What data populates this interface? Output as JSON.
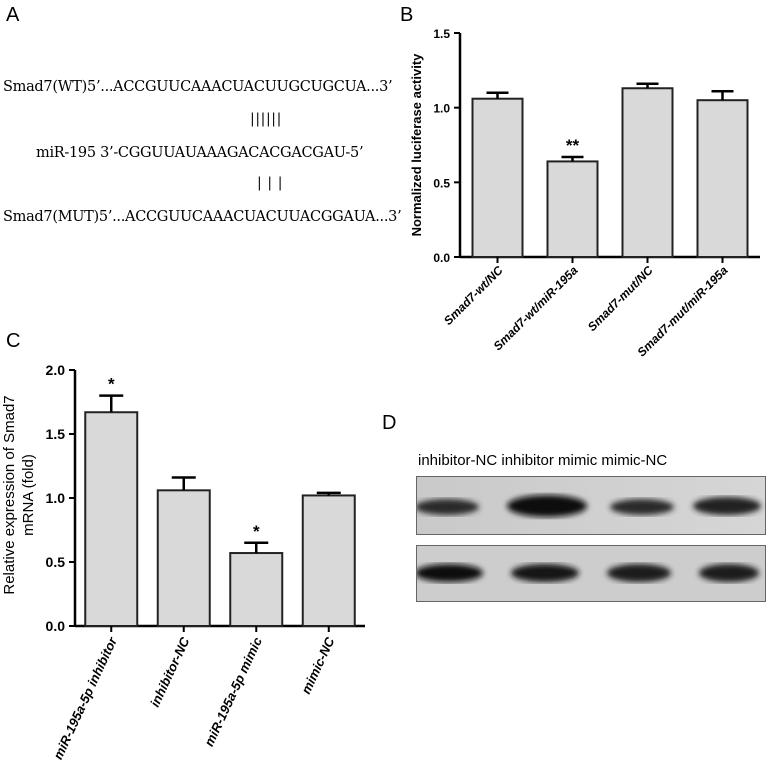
{
  "panelA": {
    "letter": "A",
    "wt_line": "Smad7(WT)5’...ACCGUUCAAACUACUUGCUGCUA...3’",
    "mir_line": "miR-195 3’-CGGUUAUAAAGACACGACGAU-5’",
    "mut_line": "Smad7(MUT)5’...ACCGUUCAAACUACUUACGGAUA...3’",
    "pairs_top": "||||||",
    "pairs_bottom": "| | |"
  },
  "panelB": {
    "letter": "B"
  },
  "panelC": {
    "letter": "C"
  },
  "panelD": {
    "letter": "D",
    "lane_labels": "inhibitor-NC inhibitor mimic mimic-NC"
  },
  "chart_data": [
    {
      "panel": "B",
      "type": "bar",
      "categories": [
        "Smad7-wt/NC",
        "Smad7-wt/miR-195a",
        "Smad7-mut/NC",
        "Smad7-mut/miR-195a"
      ],
      "values": [
        1.06,
        0.64,
        1.13,
        1.05
      ],
      "errors": [
        0.04,
        0.03,
        0.03,
        0.06
      ],
      "annotations": [
        "",
        "**",
        "",
        ""
      ],
      "ylabel": "Normalized luciferase activity",
      "ylim": [
        0,
        1.5
      ],
      "yticks": [
        "0.0",
        "0.5",
        "1.0",
        "1.5"
      ]
    },
    {
      "panel": "C",
      "type": "bar",
      "categories": [
        "miR-195a-5p inhibitor",
        "inhibitor-NC",
        "miR-195a-5p mimic",
        "mimic-NC"
      ],
      "values": [
        1.67,
        1.06,
        0.57,
        1.02
      ],
      "errors": [
        0.13,
        0.1,
        0.08,
        0.02
      ],
      "annotations": [
        "*",
        "",
        "*",
        ""
      ],
      "ylabel_line1": "Relative expression of Smad7",
      "ylabel_line2": "mRNA (fold)",
      "ylim": [
        0,
        2.0
      ],
      "yticks": [
        "0.0",
        "0.5",
        "1.0",
        "1.5",
        "2.0"
      ]
    }
  ],
  "colors": {
    "bar_fill": "#d9d9d9",
    "bar_stroke": "#222222",
    "blot_bg": "#cfcfcf"
  }
}
